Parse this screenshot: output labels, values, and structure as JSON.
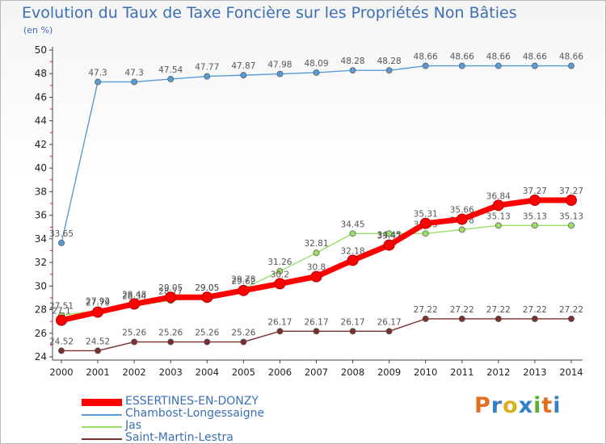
{
  "title": "Evolution du Taux de Taxe Foncière sur les Propriétés Non Bâties",
  "unit_label": "(en %)",
  "logo": {
    "text": "Proxiti",
    "letter_colors": [
      "#e07020",
      "#3a7fc4",
      "#d9b020",
      "#2f80c8",
      "#5ab030",
      "#e07020",
      "#3a7fc4"
    ]
  },
  "chart_data": {
    "type": "line",
    "title": "Evolution du Taux de Taxe Foncière sur les Propriétés Non Bâties",
    "xlabel": "",
    "ylabel": "(en %)",
    "ylim": [
      24,
      50
    ],
    "yticks": [
      24,
      26,
      28,
      30,
      32,
      34,
      36,
      38,
      40,
      42,
      44,
      46,
      48,
      50
    ],
    "categories": [
      "2000",
      "2001",
      "2002",
      "2003",
      "2004",
      "2005",
      "2006",
      "2007",
      "2008",
      "2009",
      "2010",
      "2011",
      "2012",
      "2013",
      "2014"
    ],
    "grid": false,
    "legend_position": "bottom-left",
    "series": [
      {
        "name": "Chambost-Longessaigne",
        "color": "#5b9bd5",
        "values": [
          33.65,
          47.3,
          47.3,
          47.54,
          47.77,
          47.87,
          47.98,
          48.09,
          48.28,
          48.28,
          48.66,
          48.66,
          48.66,
          48.66,
          48.66
        ],
        "labels": [
          "33.65",
          "47.3",
          "47.3",
          "47.54",
          "47.77",
          "47.87",
          "47.98",
          "48.09",
          "48.28",
          "48.28",
          "48.66",
          "48.66",
          "48.66",
          "48.66",
          "48.66"
        ]
      },
      {
        "name": "Jas",
        "color": "#99dd66",
        "values": [
          27.51,
          27.92,
          28.34,
          28.77,
          29.05,
          29.78,
          31.26,
          32.81,
          34.45,
          34.45,
          34.45,
          34.78,
          35.13,
          35.13,
          35.13
        ],
        "labels": [
          "27.51",
          "27.92",
          "28.34",
          "28.77",
          "29.05",
          "29.78",
          "31.26",
          "32.81",
          "34.45",
          "34.45",
          "34.45",
          "34.78",
          "35.13",
          "35.13",
          "35.13"
        ]
      },
      {
        "name": "Saint-Martin-Lestra",
        "color": "#7a3030",
        "values": [
          24.52,
          24.52,
          25.26,
          25.26,
          25.26,
          25.26,
          26.17,
          26.17,
          26.17,
          26.17,
          27.22,
          27.22,
          27.22,
          27.22,
          27.22
        ],
        "labels": [
          "24.52",
          "24.52",
          "25.26",
          "25.26",
          "25.26",
          "25.26",
          "26.17",
          "26.17",
          "26.17",
          "26.17",
          "27.22",
          "27.22",
          "27.22",
          "27.22",
          "27.22"
        ]
      },
      {
        "name": "ESSERTINES-EN-DONZY",
        "color": "#ff0000",
        "values": [
          27.1,
          27.79,
          28.48,
          29.05,
          29.05,
          29.62,
          30.2,
          30.8,
          32.18,
          33.47,
          35.31,
          35.66,
          36.84,
          37.27,
          37.27
        ],
        "labels": [
          "27.1",
          "27.79",
          "28.48",
          "29.05",
          "29.05",
          "29.62",
          "30.2",
          "30.8",
          "32.18",
          "33.47",
          "35.31",
          "35.66",
          "36.84",
          "37.27",
          "37.27"
        ]
      }
    ]
  },
  "legend": [
    {
      "name": "ESSERTINES-EN-DONZY",
      "color": "#ff0000"
    },
    {
      "name": "Chambost-Longessaigne",
      "color": "#5b9bd5"
    },
    {
      "name": "Jas",
      "color": "#99dd66"
    },
    {
      "name": "Saint-Martin-Lestra",
      "color": "#7a3030"
    }
  ]
}
